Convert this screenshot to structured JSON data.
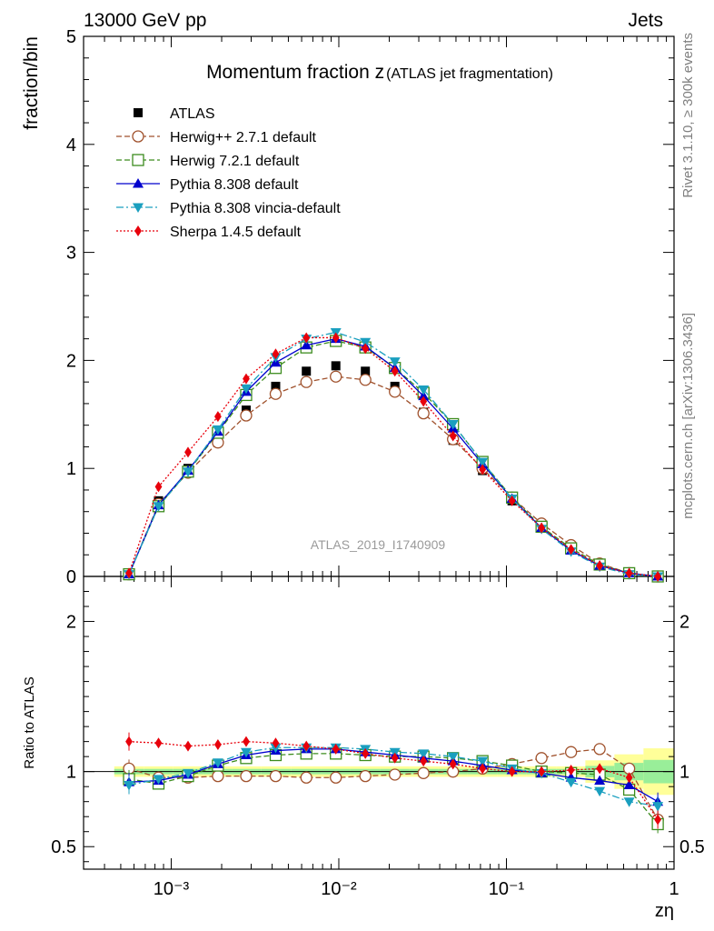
{
  "header": {
    "energy": "13000 GeV pp",
    "process": "Jets"
  },
  "side": {
    "rivet": "Rivet 3.1.10, ≥ 300k events",
    "source": "mcplots.cern.ch [arXiv:1306.3436]"
  },
  "chart_data": {
    "type": "line",
    "title_main": "Momentum fraction z",
    "title_sub": "(ATLAS jet fragmentation)",
    "xlabel": "zη",
    "ylabel": "fraction/bin",
    "ratio_ylabel": "Ratio to ATLAS",
    "analysis_id": "ATLAS_2019_I1740909",
    "xscale": "log",
    "xlim": [
      0.0003,
      1
    ],
    "ylim": [
      0,
      5
    ],
    "ratio_ylim": [
      0.35,
      2.3
    ],
    "x_ticks": [
      0.001,
      0.01,
      0.1,
      1
    ],
    "x_tick_labels": [
      "10⁻³",
      "10⁻²",
      "10⁻¹",
      "1"
    ],
    "y_ticks": [
      0,
      1,
      2,
      3,
      4,
      5
    ],
    "y_tick_labels": [
      "0",
      "1",
      "2",
      "3",
      "4",
      "5"
    ],
    "ratio_ticks": [
      0.5,
      1,
      2
    ],
    "ratio_tick_labels": [
      "0.5",
      "1",
      "2"
    ],
    "x": [
      0.00056,
      0.00084,
      0.00126,
      0.0019,
      0.0028,
      0.0042,
      0.0064,
      0.0096,
      0.0144,
      0.0216,
      0.032,
      0.048,
      0.072,
      0.108,
      0.162,
      0.243,
      0.36,
      0.54,
      0.8
    ],
    "legend": [
      {
        "name": "ATLAS",
        "color": "#000000",
        "marker": "square-filled",
        "dash": ""
      },
      {
        "name": "Herwig++ 2.7.1 default",
        "color": "#a0522d",
        "marker": "circle-open",
        "dash": "6,3"
      },
      {
        "name": "Herwig 7.2.1 default",
        "color": "#3c8c1e",
        "marker": "square-open",
        "dash": "6,3"
      },
      {
        "name": "Pythia 8.308 default",
        "color": "#0000cd",
        "marker": "triangle-up",
        "dash": ""
      },
      {
        "name": "Pythia 8.308 vincia-default",
        "color": "#1a9fbf",
        "marker": "triangle-down",
        "dash": "8,3,2,3"
      },
      {
        "name": "Sherpa 1.4.5 default",
        "color": "#e8000b",
        "marker": "diamond",
        "dash": "2,2"
      }
    ],
    "data_values": [
      0.03,
      0.7,
      1.0,
      1.28,
      1.54,
      1.76,
      1.9,
      1.95,
      1.9,
      1.76,
      1.52,
      1.26,
      0.98,
      0.7,
      0.45,
      0.25,
      0.1,
      0.03,
      0.0
    ],
    "series": [
      {
        "name": "Herwig++ 2.7.1 default",
        "values": [
          0.02,
          0.67,
          0.96,
          1.24,
          1.49,
          1.69,
          1.8,
          1.85,
          1.82,
          1.71,
          1.51,
          1.27,
          1.0,
          0.73,
          0.49,
          0.29,
          0.12,
          0.03,
          0.0
        ],
        "ratio": [
          1.02,
          0.96,
          0.96,
          0.97,
          0.97,
          0.97,
          0.96,
          0.96,
          0.97,
          0.98,
          0.99,
          1.0,
          1.02,
          1.05,
          1.09,
          1.13,
          1.15,
          1.02,
          0.68
        ]
      },
      {
        "name": "Herwig 7.2.1 default",
        "values": [
          0.02,
          0.65,
          0.97,
          1.33,
          1.68,
          1.93,
          2.12,
          2.18,
          2.12,
          1.93,
          1.7,
          1.41,
          1.06,
          0.73,
          0.46,
          0.26,
          0.11,
          0.03,
          0.0
        ],
        "ratio": [
          0.95,
          0.92,
          0.97,
          1.04,
          1.09,
          1.11,
          1.12,
          1.12,
          1.11,
          1.1,
          1.1,
          1.09,
          1.07,
          1.04,
          1.0,
          0.99,
          0.98,
          0.88,
          0.65
        ]
      },
      {
        "name": "Pythia 8.308 default",
        "values": [
          0.02,
          0.66,
          0.98,
          1.34,
          1.71,
          1.98,
          2.14,
          2.2,
          2.13,
          1.93,
          1.67,
          1.37,
          1.04,
          0.72,
          0.45,
          0.24,
          0.1,
          0.03,
          0.0
        ],
        "ratio": [
          0.93,
          0.94,
          0.98,
          1.05,
          1.11,
          1.14,
          1.15,
          1.15,
          1.13,
          1.11,
          1.09,
          1.07,
          1.04,
          1.01,
          0.99,
          0.96,
          0.94,
          0.91,
          0.8
        ]
      },
      {
        "name": "Pythia 8.308 vincia-default",
        "values": [
          0.02,
          0.65,
          0.97,
          1.36,
          1.74,
          2.03,
          2.2,
          2.26,
          2.17,
          1.99,
          1.73,
          1.41,
          1.06,
          0.72,
          0.44,
          0.23,
          0.09,
          0.02,
          0.0
        ],
        "ratio": [
          0.91,
          0.95,
          0.99,
          1.06,
          1.13,
          1.16,
          1.16,
          1.16,
          1.15,
          1.13,
          1.12,
          1.1,
          1.07,
          1.02,
          0.99,
          0.93,
          0.87,
          0.8,
          0.77
        ]
      },
      {
        "name": "Sherpa 1.4.5 default",
        "values": [
          0.03,
          0.83,
          1.15,
          1.48,
          1.83,
          2.06,
          2.21,
          2.21,
          2.11,
          1.9,
          1.62,
          1.3,
          0.99,
          0.7,
          0.45,
          0.25,
          0.1,
          0.03,
          0.0
        ],
        "ratio": [
          1.2,
          1.19,
          1.17,
          1.18,
          1.2,
          1.19,
          1.17,
          1.15,
          1.12,
          1.09,
          1.07,
          1.05,
          1.02,
          1.0,
          1.0,
          1.01,
          1.02,
          0.96,
          0.68
        ]
      }
    ]
  }
}
